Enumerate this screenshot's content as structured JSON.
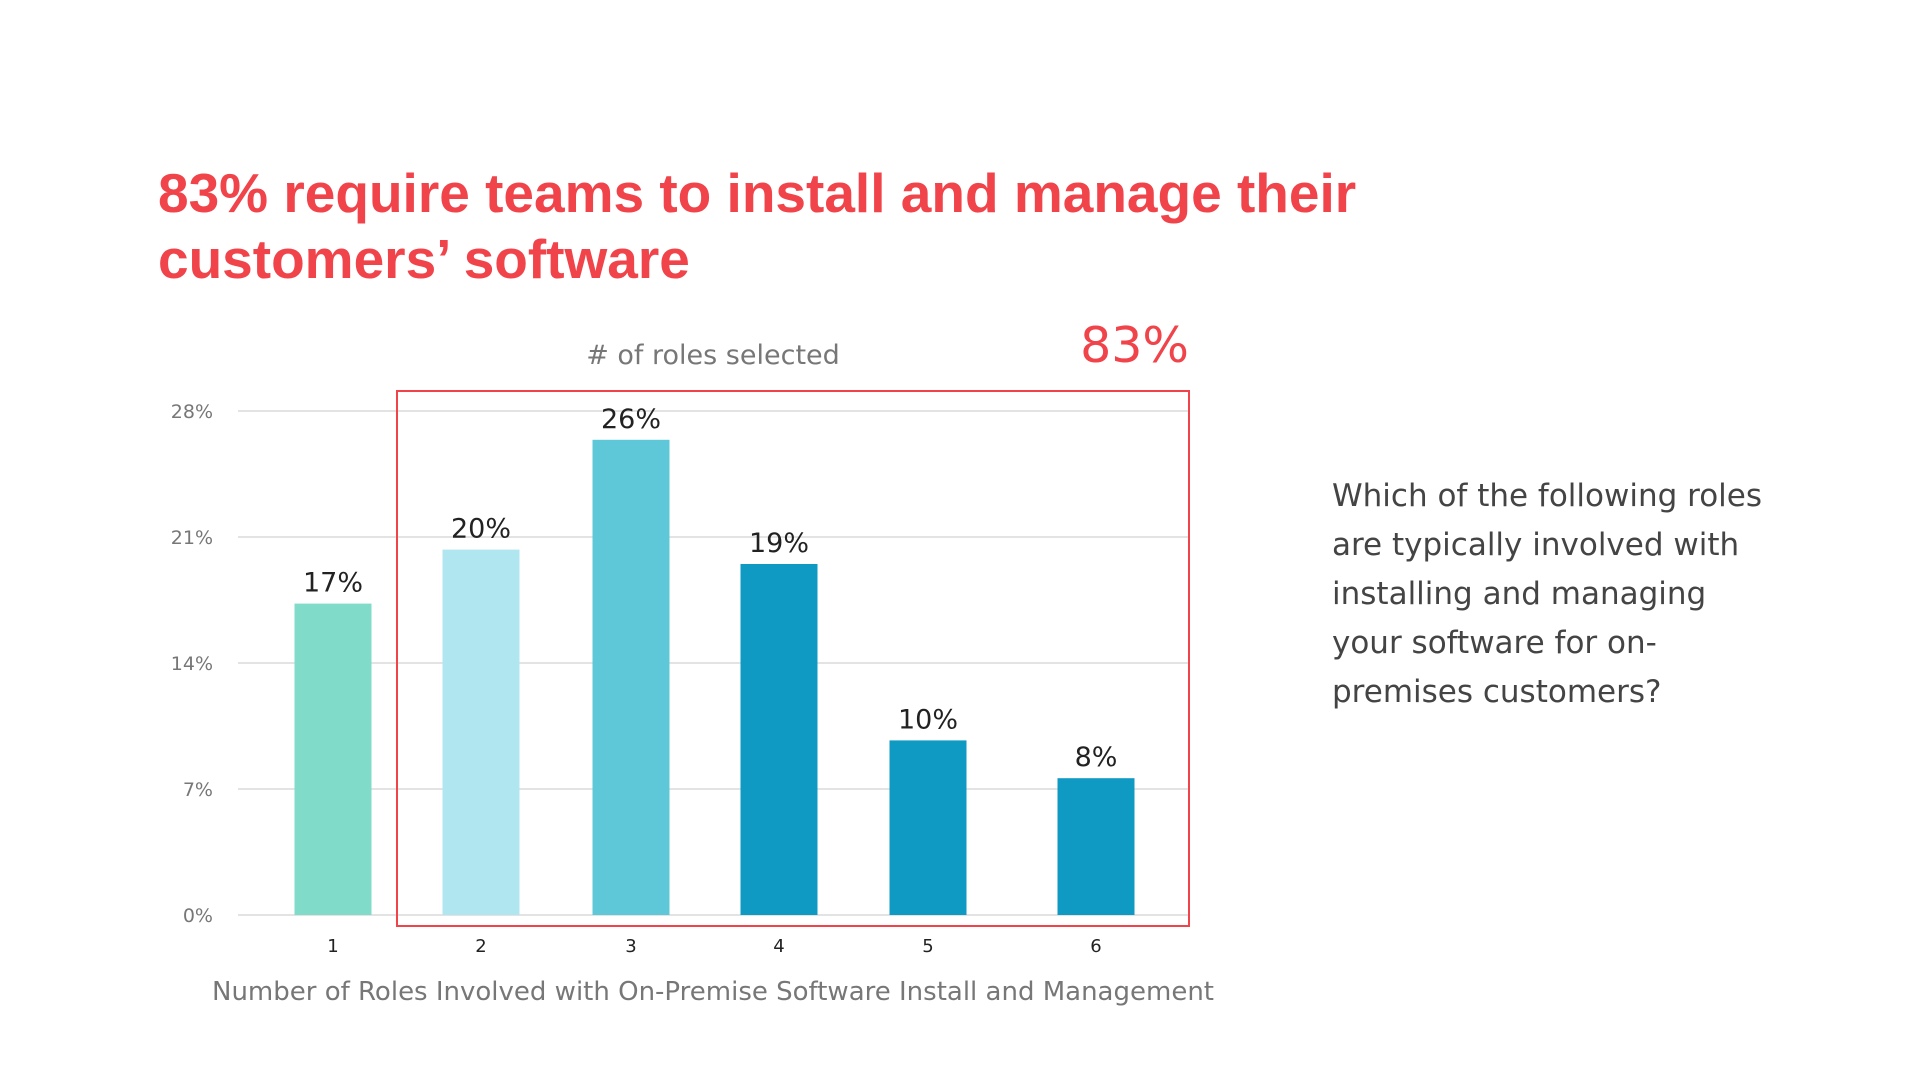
{
  "title": "83% require teams to install and manage their customers’ software",
  "question": "Which of the following roles are typically involved with installing and managing your software for on-premises customers?",
  "colors": {
    "accent": "#f0434a",
    "text": "#222222",
    "axis_text": "#777777"
  },
  "chart_data": {
    "type": "bar",
    "title": "# of roles selected",
    "highlight_label": "83%",
    "highlight_range": [
      "2",
      "6"
    ],
    "xlabel": "Number of Roles Involved with On-Premise Software Install and Management",
    "ylabel": "",
    "categories": [
      "1",
      "2",
      "3",
      "4",
      "5",
      "6"
    ],
    "values": [
      17.3,
      20.3,
      26.4,
      19.5,
      9.7,
      7.6
    ],
    "data_labels": [
      "17%",
      "20%",
      "26%",
      "19%",
      "10%",
      "8%"
    ],
    "bar_colors": [
      "#80dcc8",
      "#b0e6ef",
      "#5ec8d8",
      "#0f9ac4",
      "#0f9ac4",
      "#0f9ac4"
    ],
    "ylim": [
      0,
      28
    ],
    "yticks": [
      0,
      7,
      14,
      21,
      28
    ],
    "ytick_labels": [
      "0%",
      "7%",
      "14%",
      "21%",
      "28%"
    ],
    "grid": true
  }
}
